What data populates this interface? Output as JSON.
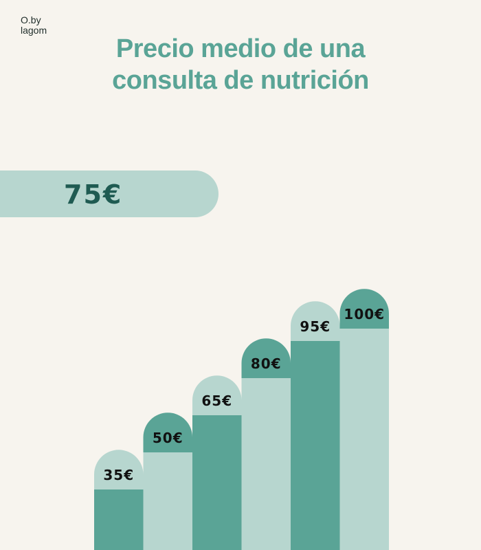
{
  "brand": {
    "line1": "O.by",
    "line2": "lagom"
  },
  "title": {
    "line1": "Precio medio de una",
    "line2": "consulta de nutrición"
  },
  "average": {
    "label": "75€",
    "value": 75
  },
  "colors": {
    "background": "#f7f4ee",
    "dark_teal": "#5aa496",
    "light_teal": "#b7d6cf",
    "label_text": "#111111"
  },
  "chart_data": {
    "type": "bar",
    "categories": [
      "",
      "",
      "",
      "",
      "",
      ""
    ],
    "values": [
      35,
      50,
      65,
      80,
      95,
      100
    ],
    "labels": [
      "35€",
      "50€",
      "65€",
      "80€",
      "95€",
      "100€"
    ],
    "title": "Precio medio de una consulta de nutrición",
    "xlabel": "",
    "ylabel": "",
    "grid": false
  }
}
